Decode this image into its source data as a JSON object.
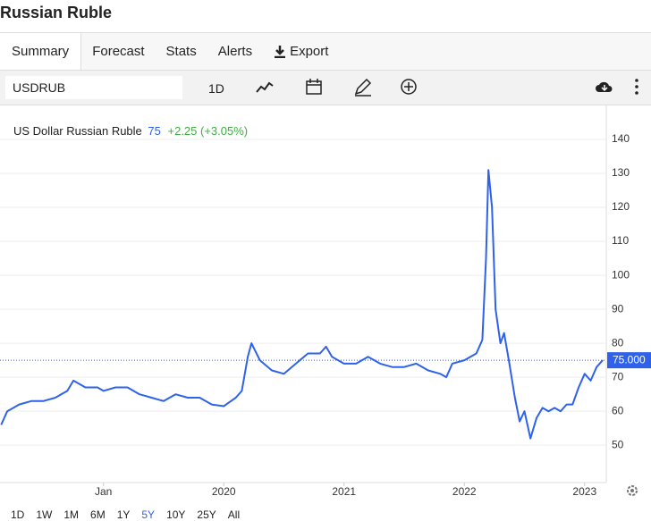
{
  "header": {
    "title": "Russian Ruble"
  },
  "tabs": [
    "Summary",
    "Forecast",
    "Stats",
    "Alerts",
    "Export"
  ],
  "toolbar": {
    "symbol": "USDRUB",
    "interval": "1D"
  },
  "ranges": [
    "1D",
    "1W",
    "1M",
    "6M",
    "1Y",
    "5Y",
    "10Y",
    "25Y",
    "All"
  ],
  "chart_data": {
    "type": "line",
    "legend_name": "US Dollar Russian Ruble",
    "legend_value": 75,
    "change_label": "+2.25 (+3.05%)",
    "price_marker": {
      "value": 75,
      "label": "75.000"
    },
    "xlim": [
      2018.14,
      2023.18
    ],
    "xticks": [
      {
        "value": 2019,
        "label": "Jan"
      },
      2020,
      2021,
      2022,
      2023
    ],
    "ylim": [
      39,
      150
    ],
    "yticks": [
      50,
      60,
      70,
      80,
      90,
      100,
      110,
      120,
      130,
      140
    ],
    "grid": true,
    "x": [
      2018.15,
      2018.2,
      2018.3,
      2018.4,
      2018.5,
      2018.6,
      2018.7,
      2018.75,
      2018.85,
      2018.95,
      2019.0,
      2019.1,
      2019.2,
      2019.3,
      2019.4,
      2019.5,
      2019.6,
      2019.7,
      2019.8,
      2019.9,
      2020.0,
      2020.1,
      2020.15,
      2020.2,
      2020.23,
      2020.3,
      2020.4,
      2020.5,
      2020.6,
      2020.7,
      2020.8,
      2020.85,
      2020.9,
      2021.0,
      2021.1,
      2021.2,
      2021.3,
      2021.4,
      2021.5,
      2021.6,
      2021.7,
      2021.8,
      2021.85,
      2021.9,
      2022.0,
      2022.1,
      2022.15,
      2022.18,
      2022.2,
      2022.23,
      2022.26,
      2022.3,
      2022.33,
      2022.37,
      2022.42,
      2022.46,
      2022.5,
      2022.55,
      2022.6,
      2022.65,
      2022.7,
      2022.75,
      2022.8,
      2022.85,
      2022.9,
      2022.95,
      2023.0,
      2023.05,
      2023.1,
      2023.15
    ],
    "series": [
      {
        "name": "USDRUB",
        "color": "#2f62ea",
        "values": [
          56,
          60,
          62,
          63,
          63,
          64,
          66,
          69,
          67,
          67,
          66,
          67,
          67,
          65,
          64,
          63,
          65,
          64,
          64,
          62,
          61.5,
          64,
          66,
          76,
          80,
          75,
          72,
          71,
          74,
          77,
          77,
          79,
          76,
          74,
          74,
          76,
          74,
          73,
          73,
          74,
          72,
          71,
          70,
          74,
          75,
          77,
          81,
          105,
          131,
          120,
          90,
          80,
          83,
          75,
          64,
          57,
          60,
          52,
          58,
          61,
          60,
          61,
          60,
          62,
          62,
          67,
          71,
          69,
          73,
          75
        ]
      }
    ]
  }
}
